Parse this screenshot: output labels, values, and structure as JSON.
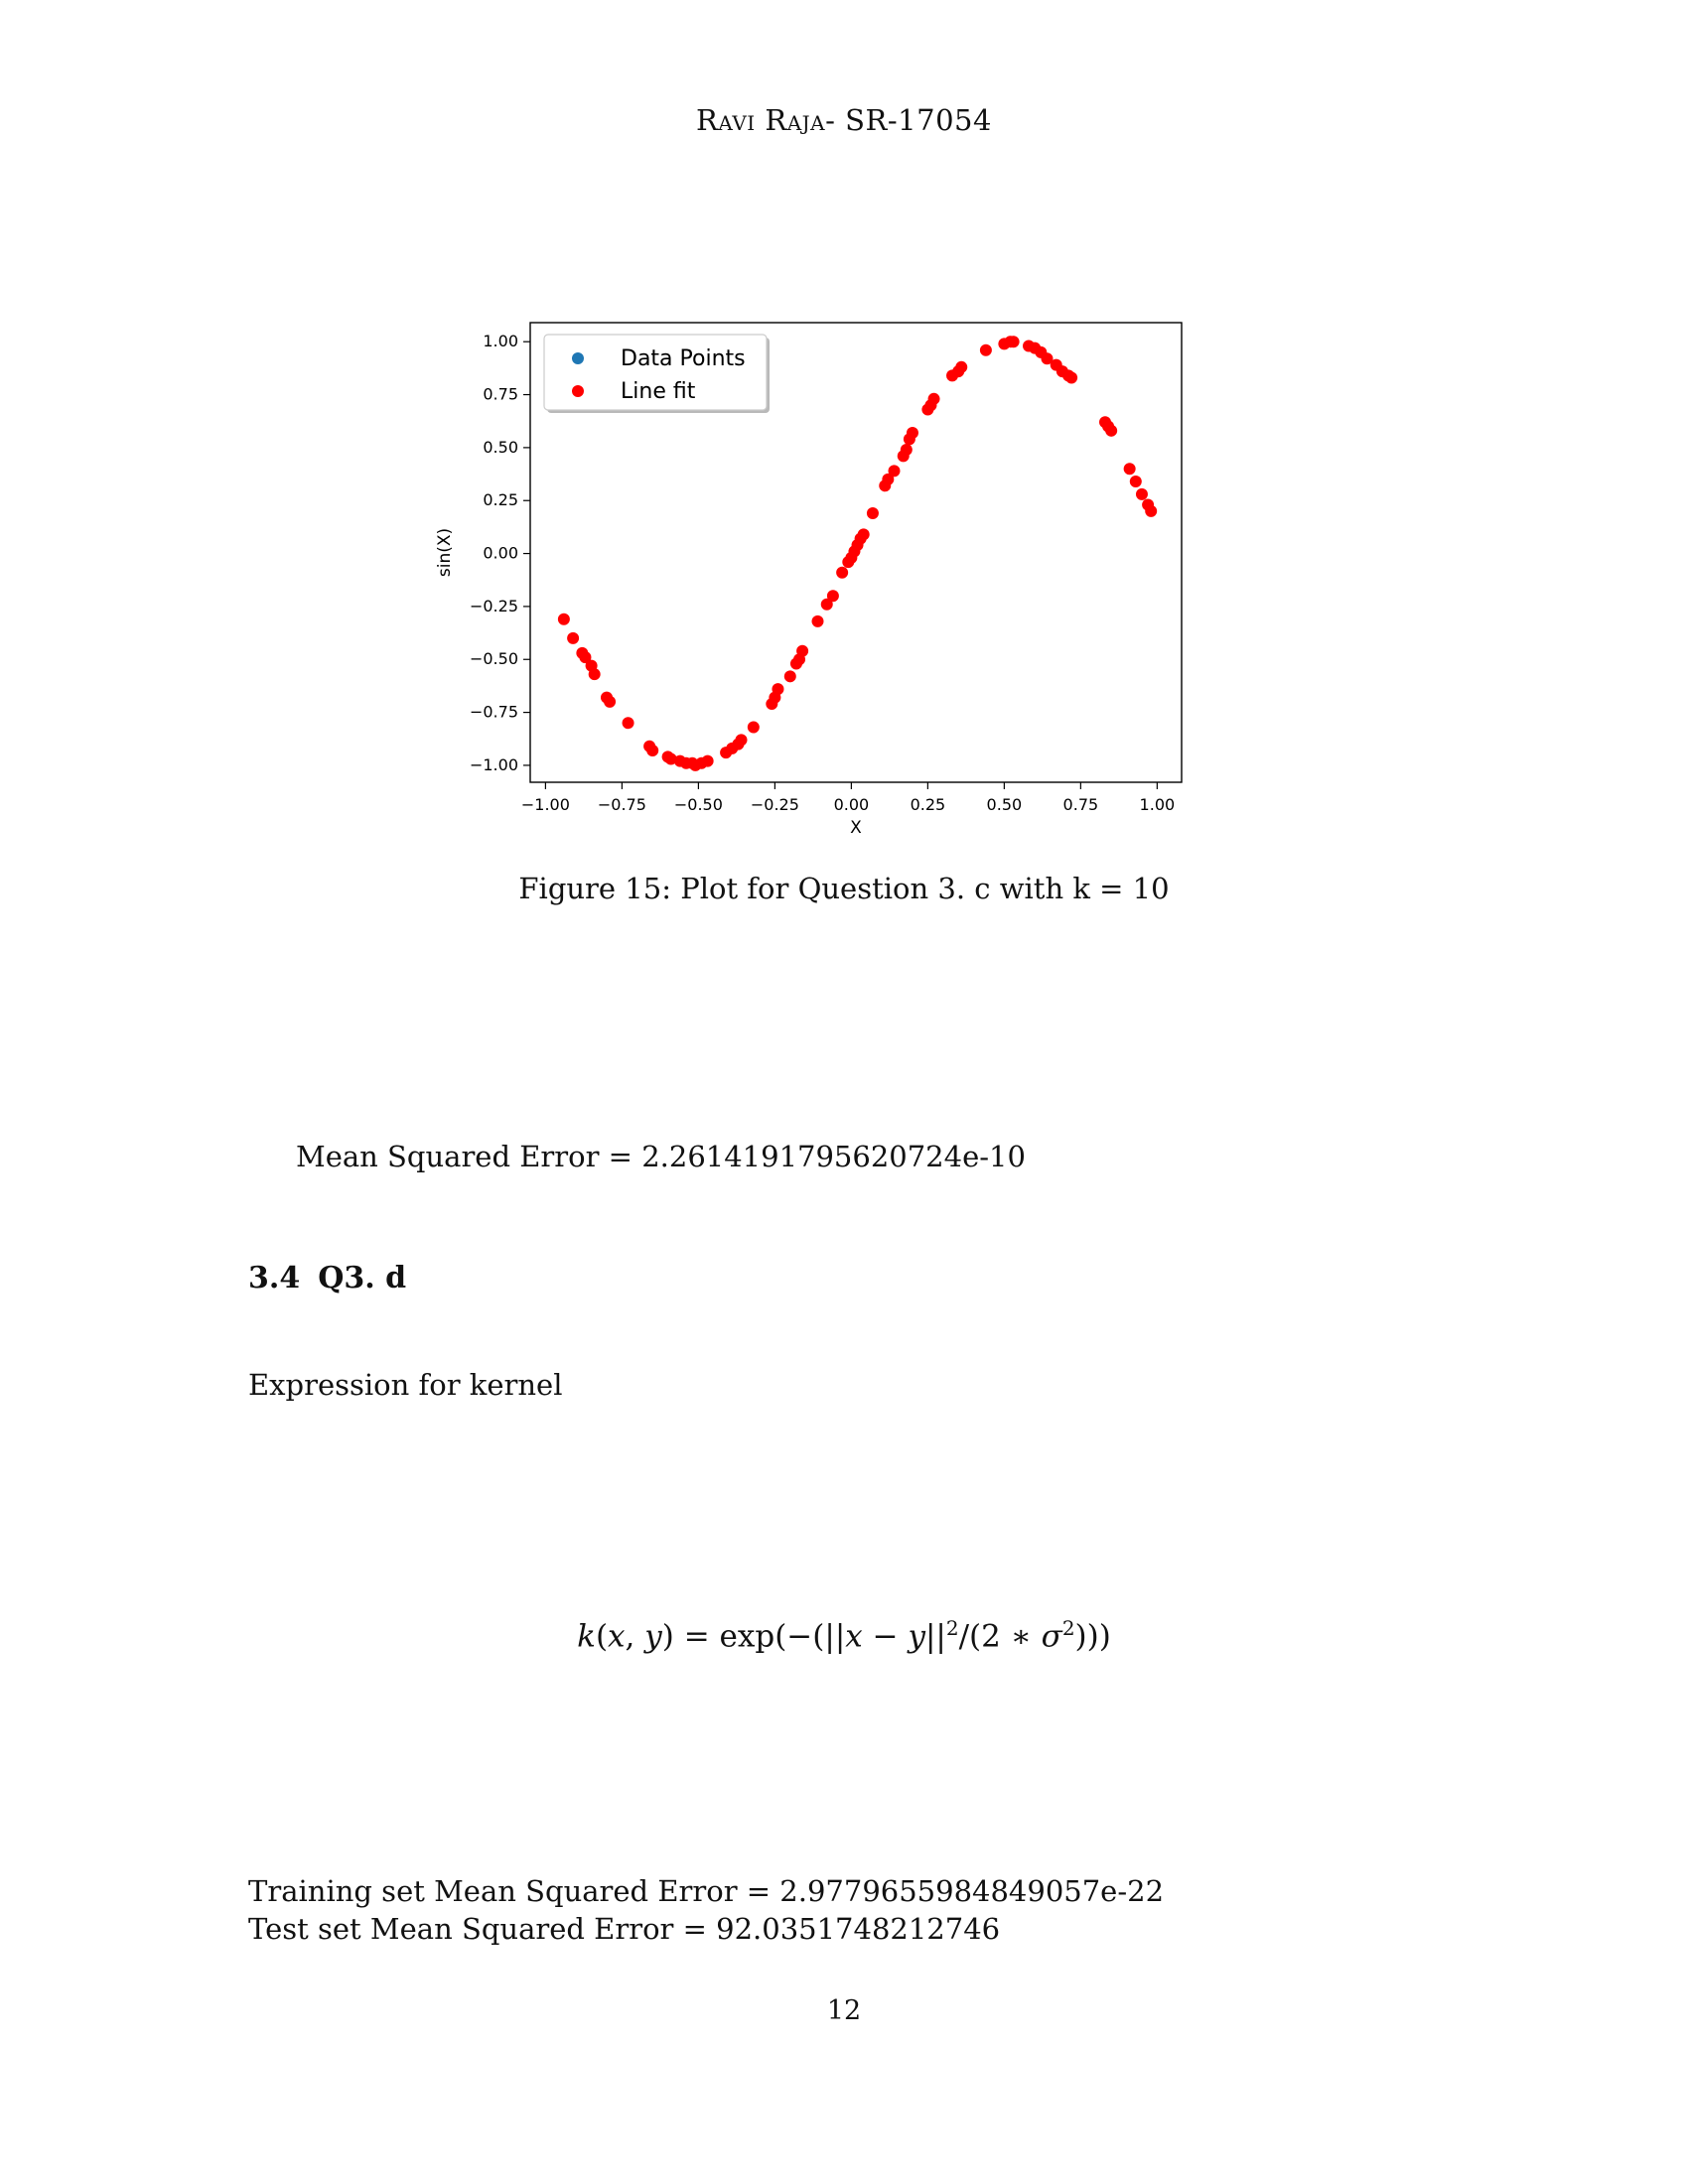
{
  "header": {
    "author": "Ravi Raja",
    "separator": "- ",
    "id": "SR-17054"
  },
  "figure": {
    "caption": "Figure 15: Plot for Question 3. c with k = 10"
  },
  "colors": {
    "data_points": "#1f77b4",
    "line_fit": "#ff0000"
  },
  "chart_data": {
    "type": "scatter",
    "xlabel": "X",
    "ylabel": "sin(X)",
    "xlim": [
      -1.05,
      1.08
    ],
    "ylim": [
      -1.08,
      1.09
    ],
    "x_ticks": [
      "−1.00",
      "−0.75",
      "−0.50",
      "−0.25",
      "0.00",
      "0.25",
      "0.50",
      "0.75",
      "1.00"
    ],
    "x_tick_values": [
      -1.0,
      -0.75,
      -0.5,
      -0.25,
      0.0,
      0.25,
      0.5,
      0.75,
      1.0
    ],
    "y_ticks": [
      "−1.00",
      "−0.75",
      "−0.50",
      "−0.25",
      "0.00",
      "0.25",
      "0.50",
      "0.75",
      "1.00"
    ],
    "y_tick_values": [
      -1.0,
      -0.75,
      -0.5,
      -0.25,
      0.0,
      0.25,
      0.5,
      0.75,
      1.0
    ],
    "legend": {
      "placement": "top-left",
      "entries": [
        "Data Points",
        "Line fit"
      ]
    },
    "series": [
      {
        "name": "Line fit",
        "x": [
          -0.94,
          -0.91,
          -0.88,
          -0.87,
          -0.85,
          -0.84,
          -0.8,
          -0.79,
          -0.73,
          -0.66,
          -0.65,
          -0.6,
          -0.59,
          -0.56,
          -0.54,
          -0.52,
          -0.51,
          -0.49,
          -0.47,
          -0.41,
          -0.39,
          -0.37,
          -0.36,
          -0.32,
          -0.26,
          -0.25,
          -0.24,
          -0.2,
          -0.18,
          -0.17,
          -0.16,
          -0.11,
          -0.08,
          -0.06,
          -0.03,
          -0.01,
          0.0,
          0.01,
          0.02,
          0.03,
          0.04,
          0.07,
          0.11,
          0.12,
          0.14,
          0.17,
          0.18,
          0.19,
          0.2,
          0.25,
          0.26,
          0.27,
          0.33,
          0.35,
          0.36,
          0.44,
          0.5,
          0.52,
          0.53,
          0.58,
          0.6,
          0.62,
          0.64,
          0.67,
          0.69,
          0.71,
          0.72,
          0.83,
          0.84,
          0.85,
          0.91,
          0.93,
          0.95,
          0.97,
          0.98
        ],
        "y": [
          -0.31,
          -0.4,
          -0.47,
          -0.49,
          -0.53,
          -0.57,
          -0.68,
          -0.7,
          -0.8,
          -0.91,
          -0.93,
          -0.96,
          -0.97,
          -0.98,
          -0.99,
          -0.99,
          -1.0,
          -0.99,
          -0.98,
          -0.94,
          -0.92,
          -0.9,
          -0.88,
          -0.82,
          -0.71,
          -0.68,
          -0.64,
          -0.58,
          -0.52,
          -0.5,
          -0.46,
          -0.32,
          -0.24,
          -0.2,
          -0.09,
          -0.04,
          -0.02,
          0.01,
          0.04,
          0.07,
          0.09,
          0.19,
          0.32,
          0.35,
          0.39,
          0.46,
          0.49,
          0.54,
          0.57,
          0.68,
          0.7,
          0.73,
          0.84,
          0.86,
          0.88,
          0.96,
          0.99,
          1.0,
          1.0,
          0.98,
          0.97,
          0.95,
          0.92,
          0.89,
          0.86,
          0.84,
          0.83,
          0.62,
          0.6,
          0.58,
          0.4,
          0.34,
          0.28,
          0.23,
          0.2
        ]
      }
    ]
  },
  "results": {
    "mse_line": "Mean Squared Error = 2.2614191795620724e-10",
    "train_line": "Training set Mean Squared Error = 2.9779655984849057e-22",
    "test_line": "Test set Mean Squared Error = 92.0351748212746"
  },
  "section": {
    "number": "3.4",
    "title": "Q3. d"
  },
  "kernel": {
    "label": "Expression for kernel"
  },
  "page_number": "12"
}
